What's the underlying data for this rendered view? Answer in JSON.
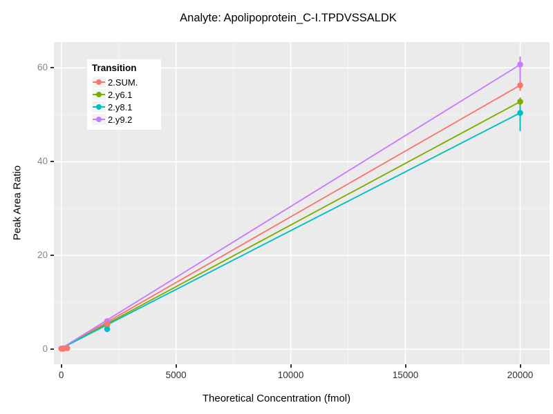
{
  "chart_data": {
    "type": "line",
    "title": "Analyte: Apolipoprotein_C-I.TPDVSSALDK",
    "xlabel": "Theoretical Concentration (fmol)",
    "ylabel": "Peak Area Ratio",
    "xlim": [
      -320,
      21280
    ],
    "ylim": [
      -3.2,
      65.5
    ],
    "xticks": [
      0,
      5000,
      10000,
      15000,
      20000
    ],
    "xtick_labels": [
      "0",
      "5000",
      "10000",
      "15000",
      "20000"
    ],
    "yticks": [
      0,
      20,
      40,
      60
    ],
    "ytick_labels": [
      "0",
      "20",
      "40",
      "60"
    ],
    "xminor": [
      2500,
      7500,
      12500,
      17500
    ],
    "yminor": [
      10,
      30,
      50
    ],
    "grid": true,
    "panel_bg": "#EBEBEB",
    "gridline_color": "#FFFFFF",
    "legend": {
      "title": "Transition",
      "position": "top-left-inside",
      "entries": [
        {
          "label": "2.SUM.",
          "color": "#F8766D"
        },
        {
          "label": "2.y6.1",
          "color": "#7CAE00"
        },
        {
          "label": "2.y8.1",
          "color": "#00BFC4"
        },
        {
          "label": "2.y9.2",
          "color": "#C77CFF"
        }
      ]
    },
    "series": [
      {
        "name": "2.SUM.",
        "color": "#F8766D",
        "zorder": 4,
        "fit_line": {
          "x": [
            0,
            20000
          ],
          "y": [
            0.2,
            56.3
          ]
        },
        "points": [
          {
            "x": 0,
            "y": 0.15
          },
          {
            "x": 120,
            "y": 0.2
          },
          {
            "x": 260,
            "y": 0.25
          },
          {
            "x": 2000,
            "y": 5.4
          },
          {
            "x": 20000,
            "y": 56.3
          }
        ],
        "errorbars": [
          {
            "x": 20000,
            "ymin": 55.1,
            "ymax": 57.5
          }
        ]
      },
      {
        "name": "2.y6.1",
        "color": "#7CAE00",
        "zorder": 1,
        "fit_line": {
          "x": [
            0,
            20000
          ],
          "y": [
            0.2,
            52.8
          ]
        },
        "points": [
          {
            "x": 80,
            "y": 0.15
          },
          {
            "x": 2000,
            "y": 5.2
          },
          {
            "x": 20000,
            "y": 52.8
          }
        ],
        "errorbars": [
          {
            "x": 20000,
            "ymin": 51.9,
            "ymax": 53.7
          }
        ]
      },
      {
        "name": "2.y8.1",
        "color": "#00BFC4",
        "zorder": 3,
        "fit_line": {
          "x": [
            0,
            20000
          ],
          "y": [
            0.2,
            50.4
          ]
        },
        "points": [
          {
            "x": 80,
            "y": 0.15
          },
          {
            "x": 2000,
            "y": 4.3
          },
          {
            "x": 20000,
            "y": 50.4
          }
        ],
        "errorbars": [
          {
            "x": 20000,
            "ymin": 46.5,
            "ymax": 51.9
          }
        ]
      },
      {
        "name": "2.y9.2",
        "color": "#C77CFF",
        "zorder": 2,
        "fit_line": {
          "x": [
            0,
            20000
          ],
          "y": [
            0.2,
            60.7
          ]
        },
        "points": [
          {
            "x": 80,
            "y": 0.2
          },
          {
            "x": 2000,
            "y": 6.0
          },
          {
            "x": 20000,
            "y": 60.7
          }
        ],
        "errorbars": [
          {
            "x": 20000,
            "ymin": 57.1,
            "ymax": 62.4
          }
        ]
      }
    ]
  }
}
